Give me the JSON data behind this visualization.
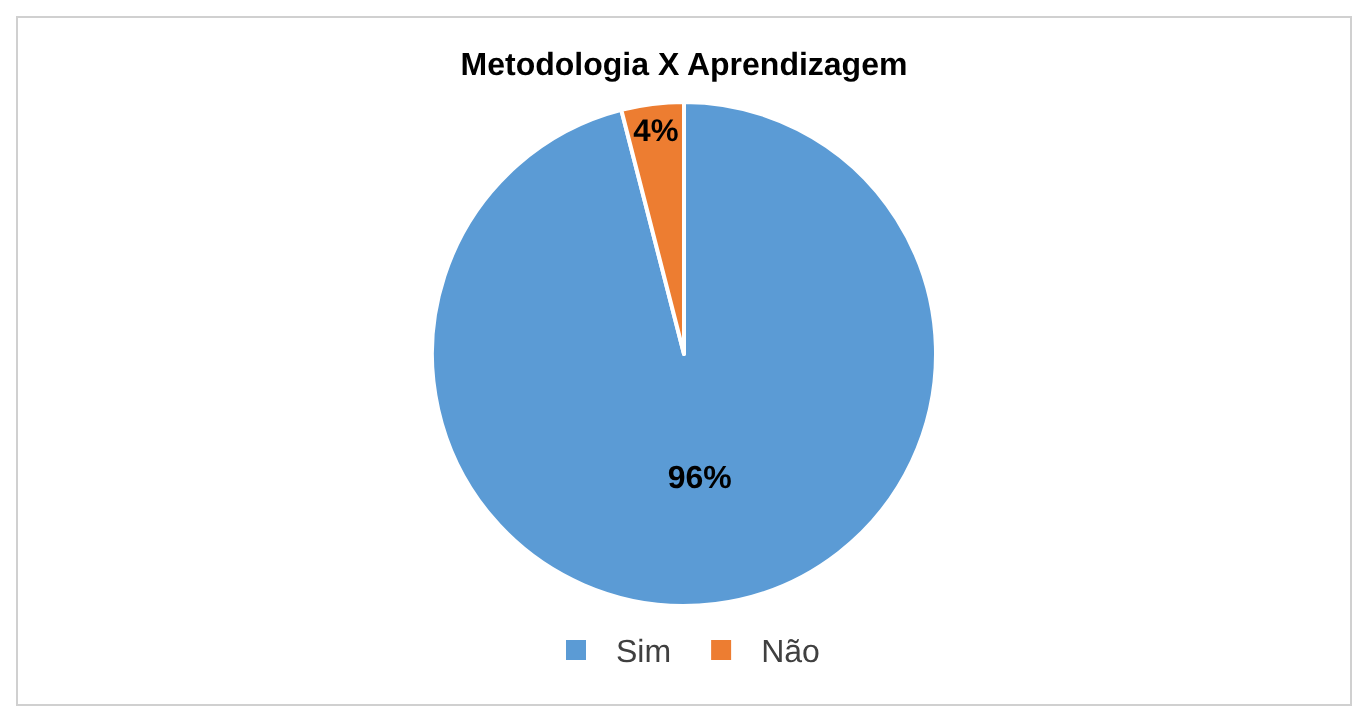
{
  "chart_data": {
    "type": "pie",
    "title": "Metodologia X Aprendizagem",
    "categories": [
      "Sim",
      "Não"
    ],
    "values": [
      96,
      4
    ],
    "value_labels": [
      "96%",
      "4%"
    ],
    "colors": [
      "#5b9bd5",
      "#ed7d31"
    ],
    "legend": "bottom"
  }
}
